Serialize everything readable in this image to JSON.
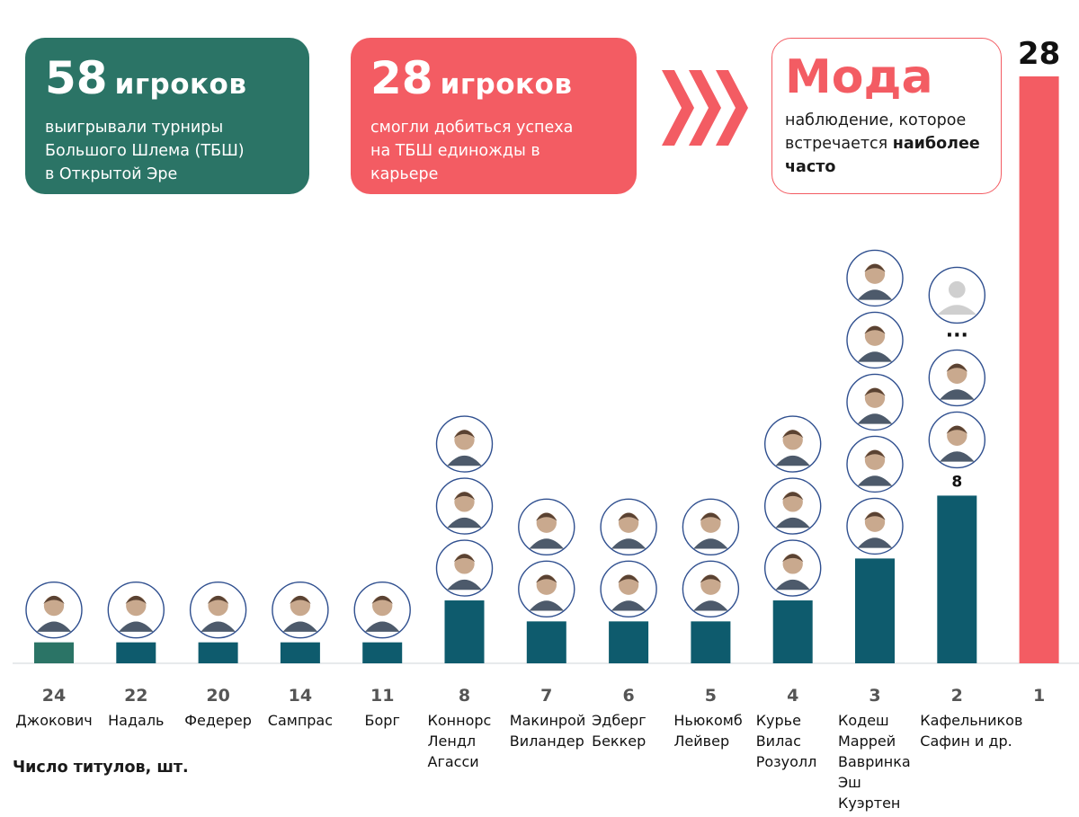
{
  "cards": {
    "total": {
      "number": "58",
      "unit": "игроков",
      "desc_lines": [
        "выигрывали турниры",
        "Большого Шлема (ТБШ)",
        "в Открытой Эре"
      ]
    },
    "once": {
      "number": "28",
      "unit": "игроков",
      "desc_lines": [
        "смогли добиться успеха",
        "на ТБШ единожды в",
        "карьере"
      ]
    },
    "mode": {
      "title": "Мода",
      "desc_line1": "наблюдение, которое",
      "desc_line2_plain": "встречается ",
      "desc_line2_bold": "наиболее",
      "desc_line3_bold": "часто"
    }
  },
  "colors": {
    "green": "#2b7466",
    "teal": "#0e5b6d",
    "red": "#f35c63",
    "arrow": "#f35c63"
  },
  "footnote": "Число титулов, шт.",
  "chart_data": {
    "type": "bar",
    "categories": [
      "24",
      "22",
      "20",
      "14",
      "11",
      "8",
      "7",
      "6",
      "5",
      "4",
      "3",
      "2",
      "1"
    ],
    "values": [
      1,
      1,
      1,
      1,
      1,
      3,
      2,
      2,
      2,
      3,
      5,
      8,
      28
    ],
    "players": [
      [
        "Джокович"
      ],
      [
        "Надаль"
      ],
      [
        "Федерер"
      ],
      [
        "Сампрас"
      ],
      [
        "Борг"
      ],
      [
        "Коннорс",
        "Лендл",
        "Агасси"
      ],
      [
        "Макинрой",
        "Виландер"
      ],
      [
        "Эдберг",
        "Беккер"
      ],
      [
        "Ньюкомб",
        "Лейвер"
      ],
      [
        "Курье",
        "Вилас",
        "Розуолл"
      ],
      [
        "Кодеш",
        "Маррей",
        "Вавринка",
        "Эш",
        "Куэртен"
      ],
      [
        "Кафельников",
        "Сафин и др."
      ],
      []
    ],
    "data_labels": {
      "11": "8",
      "12": "28"
    },
    "bar_colors": [
      "green",
      "teal",
      "teal",
      "teal",
      "teal",
      "teal",
      "teal",
      "teal",
      "teal",
      "teal",
      "teal",
      "teal",
      "red"
    ],
    "ellipsis": "...",
    "xlabel": "Число титулов, шт.",
    "ylim": [
      0,
      28
    ]
  }
}
